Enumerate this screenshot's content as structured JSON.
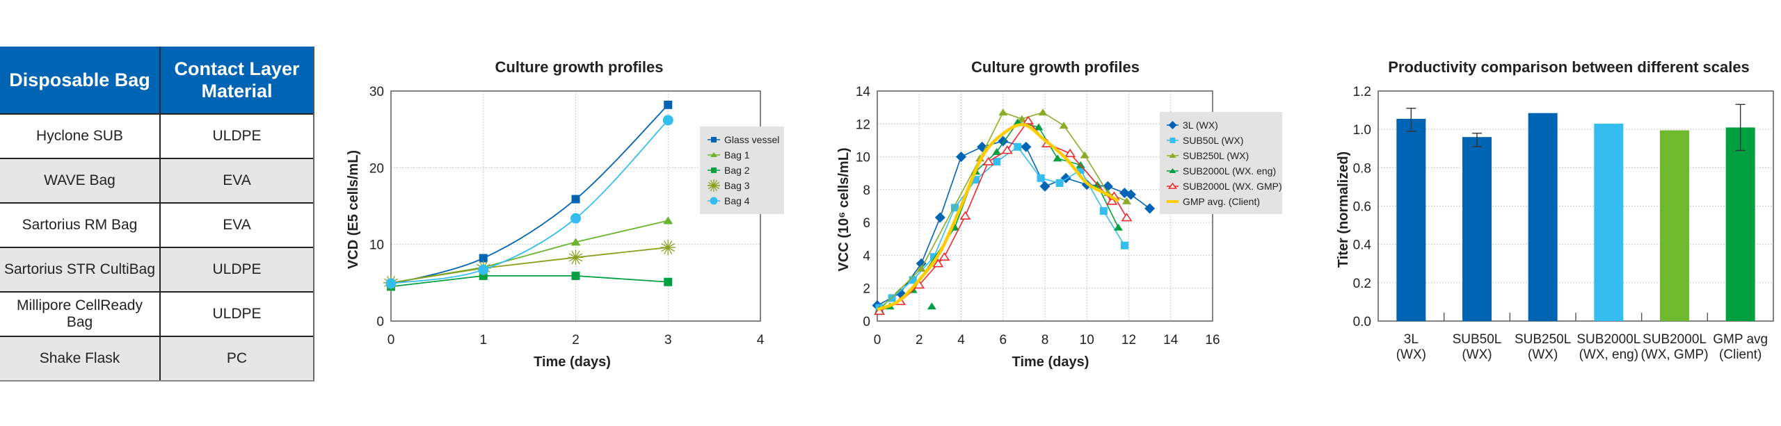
{
  "table": {
    "headers": [
      "Disposable Bag",
      "Contact Layer Material"
    ],
    "rows": [
      {
        "bag": "Hyclone SUB",
        "material": "ULDPE"
      },
      {
        "bag": "WAVE Bag",
        "material": "EVA"
      },
      {
        "bag": "Sartorius RM Bag",
        "material": "EVA"
      },
      {
        "bag": "Sartorius STR CultiBag",
        "material": "ULDPE"
      },
      {
        "bag": "Millipore CellReady Bag",
        "material": "ULDPE"
      },
      {
        "bag": "Shake Flask",
        "material": "PC"
      }
    ],
    "header_color": "#0064b4",
    "shade_color": "#e6e6e6"
  },
  "chart_data": [
    {
      "type": "line",
      "title": "Culture growth profiles",
      "xlabel": "Time (days)",
      "ylabel": "VCD (E5 cells/mL)",
      "xlim": [
        0,
        4
      ],
      "ylim": [
        0,
        30
      ],
      "xticks": [
        0,
        1,
        2,
        3,
        4
      ],
      "yticks": [
        0,
        10,
        20,
        30
      ],
      "grid": true,
      "legend_position": "right",
      "x": [
        0,
        1,
        2,
        3
      ],
      "series": [
        {
          "name": "Glass vessel",
          "color": "#0064b4",
          "marker": "square",
          "smooth": true,
          "values": [
            4.8,
            8.2,
            15.9,
            28.2
          ]
        },
        {
          "name": "Bag 1",
          "color": "#6ab42d",
          "marker": "triangle",
          "smooth": false,
          "values": [
            5.0,
            7.0,
            10.3,
            13.1
          ]
        },
        {
          "name": "Bag 2",
          "color": "#00a040",
          "marker": "square",
          "smooth": false,
          "values": [
            4.5,
            5.9,
            5.9,
            5.1
          ]
        },
        {
          "name": "Bag 3",
          "color": "#8ca020",
          "marker": "star",
          "smooth": false,
          "values": [
            5.0,
            6.9,
            8.3,
            9.6
          ]
        },
        {
          "name": "Bag 4",
          "color": "#35bdef",
          "marker": "circle",
          "smooth": true,
          "values": [
            4.9,
            6.7,
            13.4,
            26.2
          ]
        }
      ]
    },
    {
      "type": "line",
      "title": "Culture growth profiles",
      "xlabel": "Time (days)",
      "ylabel": "VCC (10⁶ cells/mL)",
      "xlim": [
        0,
        16
      ],
      "ylim": [
        0,
        14
      ],
      "xticks": [
        0,
        2,
        4,
        6,
        8,
        10,
        12,
        14,
        16
      ],
      "yticks": [
        0,
        2,
        4,
        6,
        8,
        10,
        12,
        14
      ],
      "grid": true,
      "legend_position": "right",
      "series": [
        {
          "name": "3L (WX)",
          "color": "#0064b4",
          "marker": "diamond",
          "points": [
            [
              0,
              0.95
            ],
            [
              1.1,
              1.7
            ],
            [
              2.1,
              3.5
            ],
            [
              3.0,
              6.3
            ],
            [
              4.0,
              10.0
            ],
            [
              5.0,
              10.6
            ],
            [
              6.0,
              10.95
            ],
            [
              7.1,
              10.6
            ],
            [
              8.0,
              8.2
            ],
            [
              9.0,
              8.7
            ],
            [
              10.0,
              8.3
            ],
            [
              11.0,
              8.2
            ],
            [
              11.8,
              7.8
            ],
            [
              12.1,
              7.7
            ],
            [
              13.0,
              6.85
            ]
          ]
        },
        {
          "name": "SUB50L (WX)",
          "color": "#35bdef",
          "marker": "square",
          "points": [
            [
              0.1,
              0.8
            ],
            [
              0.7,
              1.4
            ],
            [
              1.7,
              2.5
            ],
            [
              2.7,
              3.9
            ],
            [
              3.7,
              6.9
            ],
            [
              4.7,
              8.6
            ],
            [
              5.7,
              9.7
            ],
            [
              6.7,
              10.6
            ],
            [
              7.8,
              8.7
            ],
            [
              8.7,
              8.4
            ],
            [
              9.7,
              9.2
            ],
            [
              10.8,
              6.7
            ],
            [
              11.8,
              4.6
            ]
          ]
        },
        {
          "name": "SUB250L (WX)",
          "color": "#8cac28",
          "marker": "triangle",
          "points": [
            [
              0.1,
              0.7
            ],
            [
              2.1,
              3.2
            ],
            [
              4.9,
              9.9
            ],
            [
              6.0,
              12.7
            ],
            [
              6.9,
              12.3
            ],
            [
              7.9,
              12.7
            ],
            [
              8.9,
              11.9
            ],
            [
              9.9,
              10.1
            ],
            [
              11.0,
              7.8
            ],
            [
              11.9,
              7.3
            ]
          ]
        },
        {
          "name": "SUB2000L (WX. eng)",
          "color": "#00a040",
          "marker": "triangle",
          "points": [
            [
              0.1,
              0.7
            ],
            [
              0.6,
              0.9
            ],
            [
              1.7,
              1.9
            ],
            [
              2.6,
              0.9
            ],
            [
              3.7,
              5.7
            ],
            [
              4.7,
              9.1
            ],
            [
              5.7,
              10.3
            ],
            [
              6.7,
              12.1
            ],
            [
              7.7,
              11.8
            ],
            [
              8.6,
              9.9
            ],
            [
              9.7,
              9.5
            ],
            [
              10.5,
              8.3
            ],
            [
              11.5,
              5.7
            ]
          ]
        },
        {
          "name": "SUB2000L (WX. GMP)",
          "color": "#f0282d",
          "marker": "triangle-open",
          "points": [
            [
              0.1,
              0.6
            ],
            [
              1.1,
              1.2
            ],
            [
              2.0,
              2.2
            ],
            [
              2.9,
              3.5
            ],
            [
              3.2,
              3.9
            ],
            [
              4.2,
              6.4
            ],
            [
              5.3,
              9.7
            ],
            [
              6.2,
              10.4
            ],
            [
              7.2,
              12.2
            ],
            [
              8.1,
              10.8
            ],
            [
              9.2,
              10.2
            ],
            [
              11.2,
              7.3
            ],
            [
              11.3,
              7.6
            ],
            [
              11.9,
              6.3
            ]
          ]
        },
        {
          "name": "GMP avg. (Client)",
          "color": "#ffcc00",
          "marker": "none",
          "thick": true,
          "points": [
            [
              0,
              0.7
            ],
            [
              1,
              1.2
            ],
            [
              2,
              2.5
            ],
            [
              3,
              4.2
            ],
            [
              4,
              7.0
            ],
            [
              5,
              10.0
            ],
            [
              6,
              11.4
            ],
            [
              7,
              11.95
            ],
            [
              8,
              11.0
            ],
            [
              9,
              9.9
            ],
            [
              10,
              8.4
            ],
            [
              11,
              7.7
            ],
            [
              11.5,
              7.3
            ]
          ]
        }
      ]
    },
    {
      "type": "bar",
      "title": "Productivity comparison between different scales",
      "xlabel": "",
      "ylabel": "Titer (normalized)",
      "ylim": [
        0,
        1.2
      ],
      "yticks": [
        "0.0",
        "0.2",
        "0.4",
        "0.6",
        "0.8",
        "1.0",
        "1.2"
      ],
      "grid": true,
      "categories": [
        {
          "line1": "3L",
          "line2": "(WX)"
        },
        {
          "line1": "SUB50L",
          "line2": "(WX)"
        },
        {
          "line1": "SUB250L",
          "line2": "(WX)"
        },
        {
          "line1": "SUB2000L",
          "line2": "(WX, eng)"
        },
        {
          "line1": "SUB2000L",
          "line2": "(WX, GMP)"
        },
        {
          "line1": "GMP avg",
          "line2": "(Client)"
        }
      ],
      "values": [
        1.055,
        0.96,
        1.085,
        1.03,
        0.995,
        1.01
      ],
      "error_low": [
        0.99,
        0.91,
        null,
        null,
        null,
        0.89
      ],
      "error_high": [
        1.11,
        0.98,
        null,
        null,
        null,
        1.13
      ],
      "colors": [
        "#0064b4",
        "#0064b4",
        "#0064b4",
        "#35bdef",
        "#6eb92d",
        "#00a040"
      ]
    }
  ]
}
